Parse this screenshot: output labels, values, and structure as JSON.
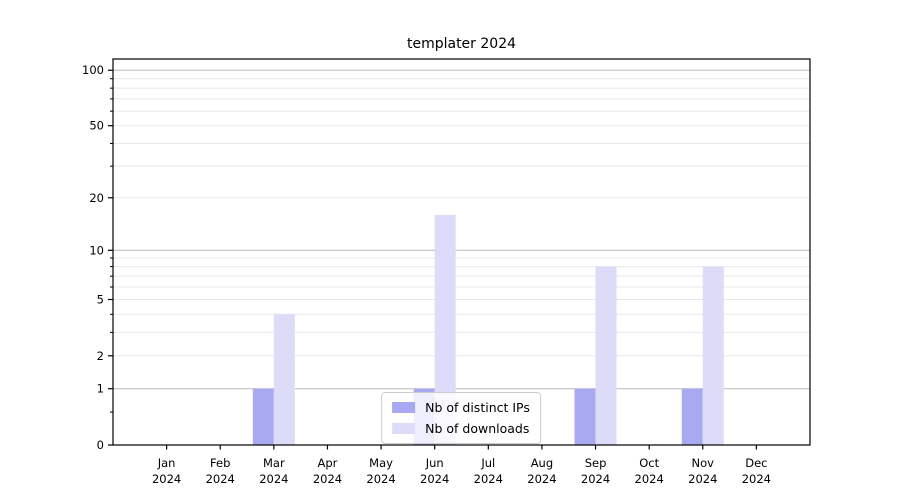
{
  "window": {
    "background": "#ffffff"
  },
  "chart_data": {
    "type": "bar",
    "title": "templater 2024",
    "categories": [
      "Jan",
      "Feb",
      "Mar",
      "Apr",
      "May",
      "Jun",
      "Jul",
      "Aug",
      "Sep",
      "Oct",
      "Nov",
      "Dec"
    ],
    "category_year": "2024",
    "series": [
      {
        "name": "Nb of distinct IPs",
        "color": "#a9a9f2",
        "values": [
          0,
          0,
          1,
          0,
          0,
          1,
          0,
          0,
          1,
          0,
          1,
          0
        ]
      },
      {
        "name": "Nb of downloads",
        "color": "#dcdcf8",
        "values": [
          0,
          0,
          4,
          0,
          0,
          16,
          0,
          0,
          8,
          0,
          8,
          0
        ]
      }
    ],
    "y_scale": "log1p",
    "y_ticks": [
      0,
      1,
      2,
      5,
      10,
      20,
      50,
      100
    ],
    "y_decade_ticks": [
      1,
      10,
      100
    ],
    "y_minor_ticks": [
      0.5,
      3,
      4,
      6,
      7,
      8,
      9,
      30,
      40,
      60,
      70,
      80,
      90
    ],
    "ylim": [
      0,
      115
    ],
    "xlabel": "",
    "ylabel": "",
    "grid": true,
    "legend_position": "lower center",
    "colors": {
      "grid_decade": "#b9b9b9",
      "grid_minor": "#e8e8e8",
      "axis": "#000000",
      "text": "#000000",
      "legend_border": "#cccccc"
    }
  }
}
